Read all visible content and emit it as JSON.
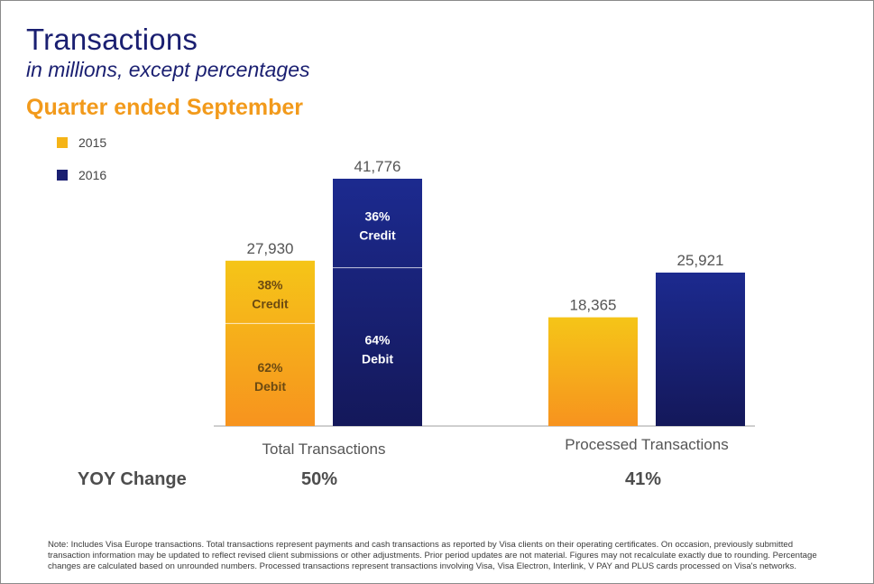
{
  "header": {
    "title": "Transactions",
    "subtitle": "in millions, except percentages",
    "period": "Quarter ended September"
  },
  "colors": {
    "title": "#1a1f71",
    "period": "#f29a1b",
    "series_2015_top": "#f5c518",
    "series_2015_bottom": "#f7931e",
    "series_2016_top": "#1c2a8f",
    "series_2016_bottom": "#14185a"
  },
  "chart_data": {
    "type": "bar",
    "categories": [
      "Total Transactions",
      "Processed Transactions"
    ],
    "series": [
      {
        "name": "2015",
        "values": [
          27930,
          18365
        ],
        "value_labels": [
          "27,930",
          "18,365"
        ]
      },
      {
        "name": "2016",
        "values": [
          41776,
          25921
        ],
        "value_labels": [
          "41,776",
          "25,921"
        ]
      }
    ],
    "segments": {
      "Total Transactions": {
        "2015": [
          {
            "pct": "62%",
            "label": "Debit",
            "share": 0.62
          },
          {
            "pct": "38%",
            "label": "Credit",
            "share": 0.38
          }
        ],
        "2016": [
          {
            "pct": "64%",
            "label": "Debit",
            "share": 0.64
          },
          {
            "pct": "36%",
            "label": "Credit",
            "share": 0.36
          }
        ]
      }
    },
    "yoy": {
      "label": "YOY Change",
      "values": [
        "50%",
        "41%"
      ]
    },
    "legend": [
      "2015",
      "2016"
    ],
    "legend_position": "top-left",
    "ylim": [
      0,
      41776
    ],
    "grid": false
  },
  "footnote": "Note: Includes Visa Europe transactions. Total transactions represent payments and cash transactions as reported by Visa clients on their operating certificates. On occasion, previously submitted transaction information may be updated to reflect revised client submissions or other adjustments. Prior period updates are not material. Figures may not recalculate exactly due to rounding. Percentage changes are calculated based on unrounded numbers. Processed transactions represent transactions involving Visa, Visa Electron, Interlink, V PAY and PLUS cards processed on Visa's networks."
}
